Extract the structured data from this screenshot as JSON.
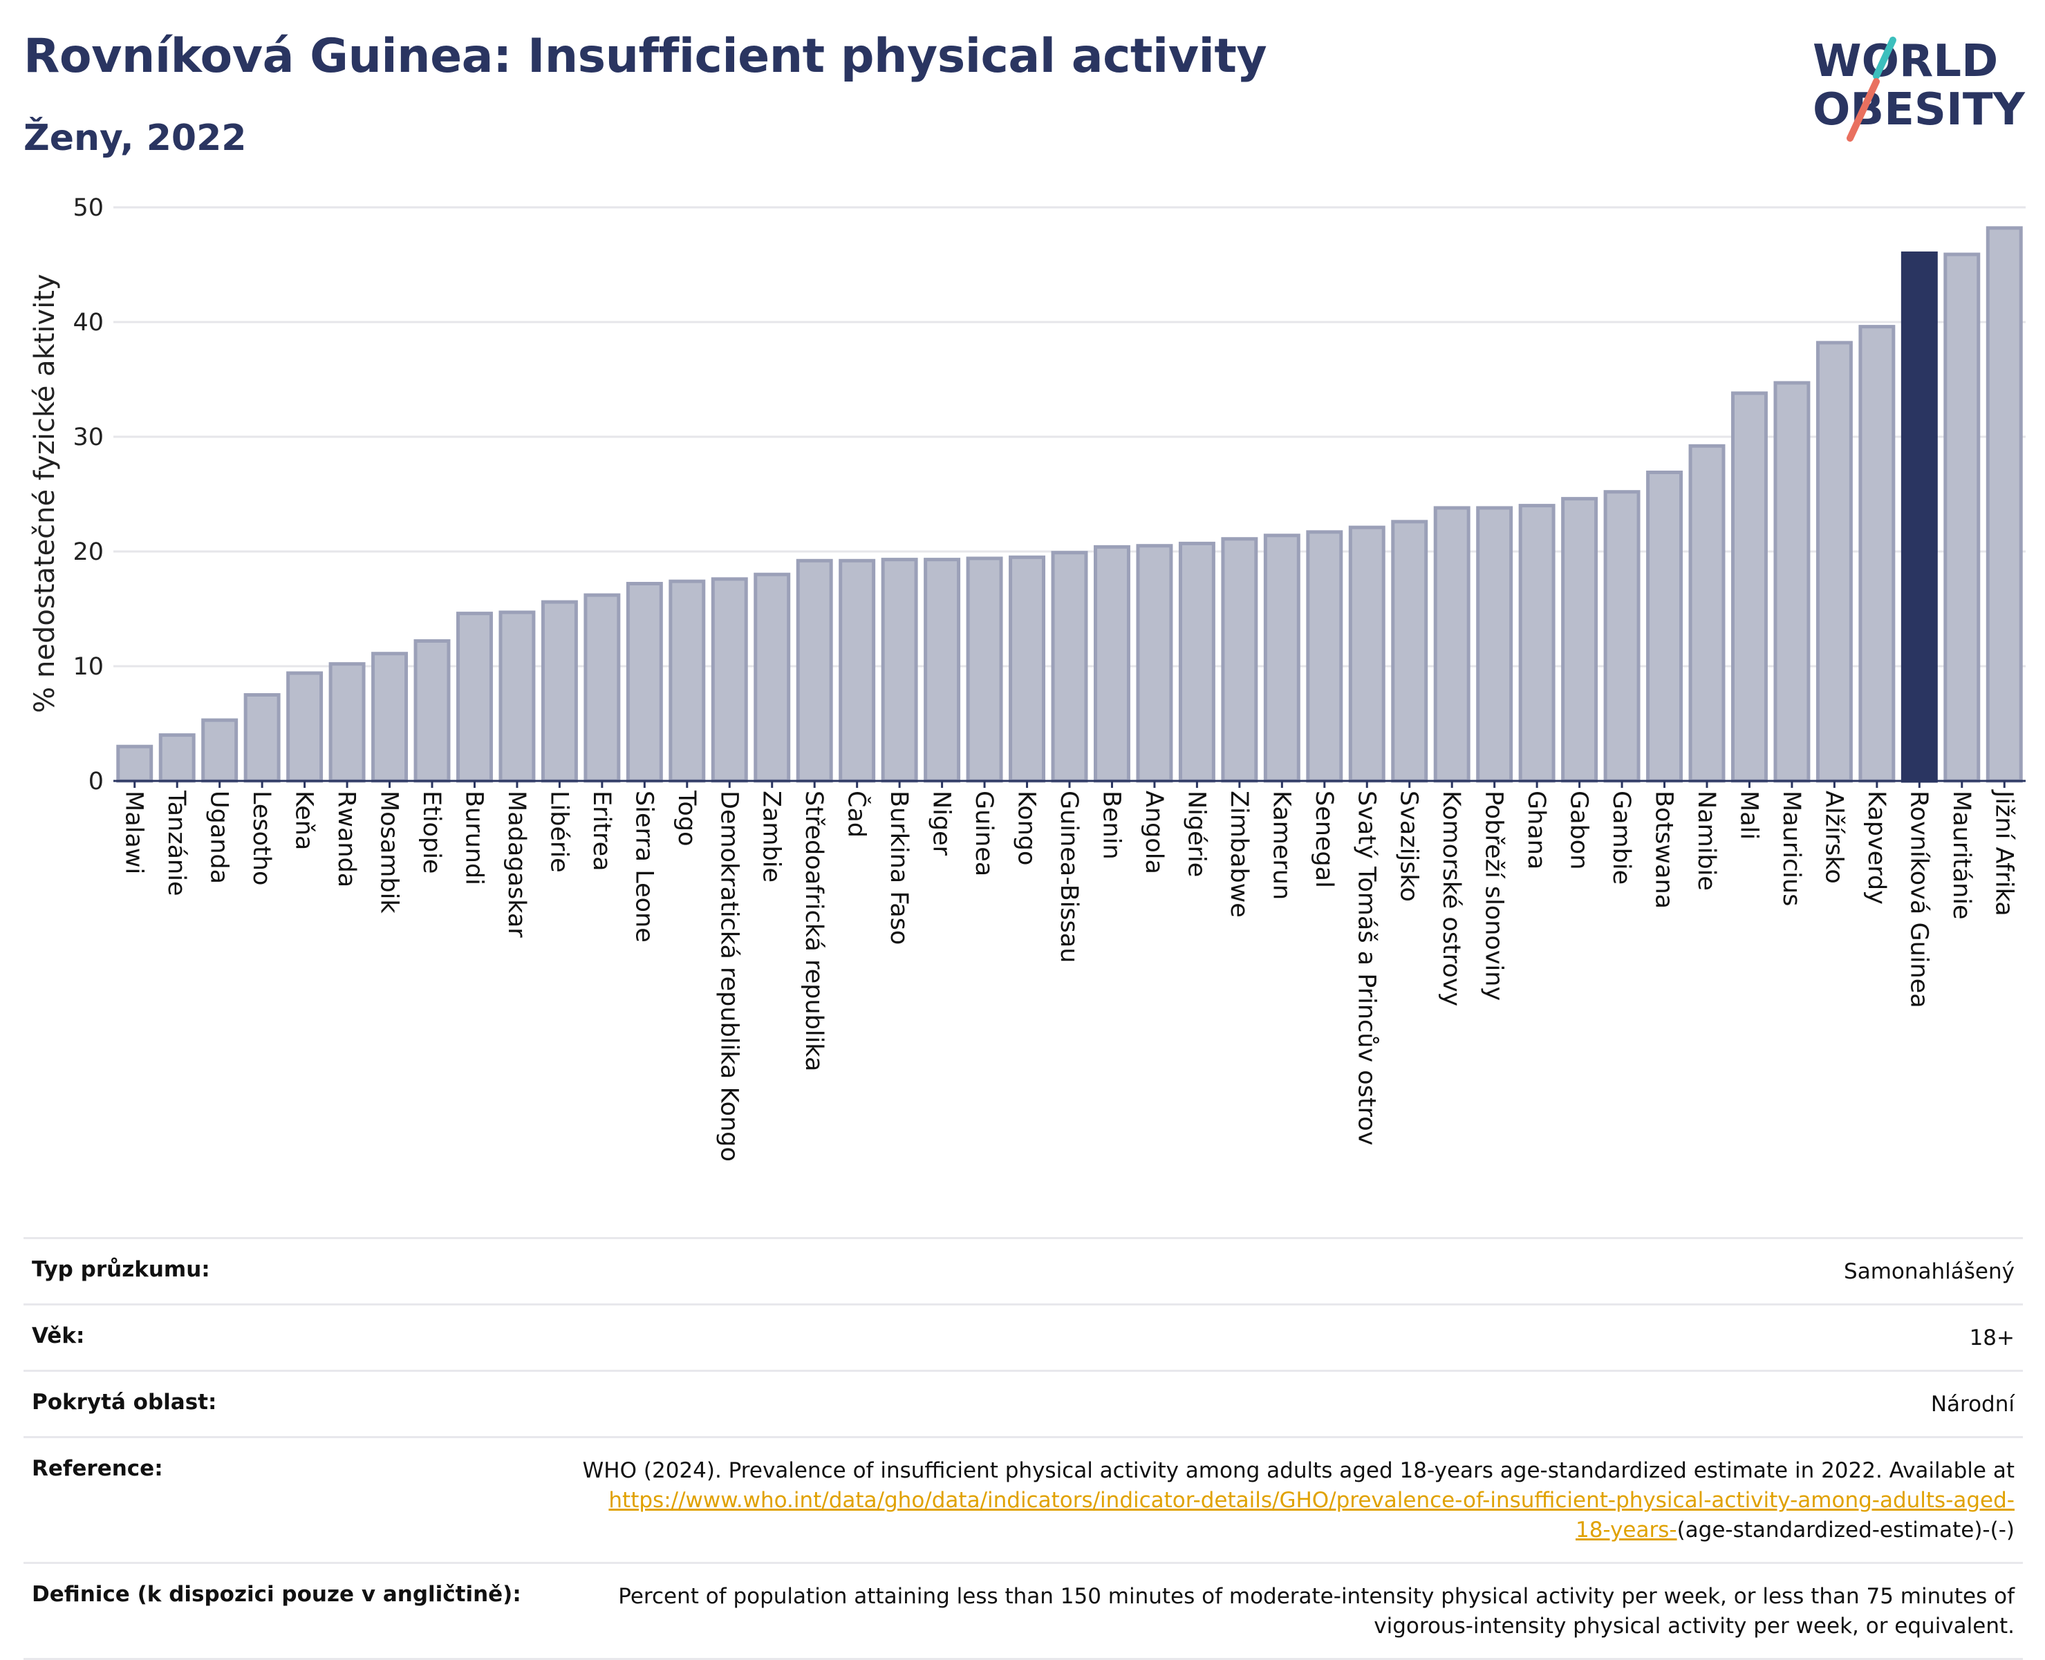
{
  "header": {
    "title": "Rovníková Guinea: Insufficient physical activity",
    "subtitle": "Ženy, 2022"
  },
  "logo": {
    "line1": "WORLD",
    "line2": "OBESITY",
    "accent_teal": "#3cbfbd",
    "accent_coral": "#e9705f"
  },
  "colors": {
    "bar": "#b9bdcc",
    "bar_border": "#9ba0b8",
    "highlight": "#2a3561",
    "grid": "#e6e6ea"
  },
  "chart_data": {
    "type": "bar",
    "ylabel": "% nedostatečné fyzické aktivity",
    "ylim": [
      0,
      50
    ],
    "yticks": [
      0,
      10,
      20,
      30,
      40,
      50
    ],
    "highlight": "Rovníková Guinea",
    "categories": [
      "Malawi",
      "Tanzánie",
      "Uganda",
      "Lesotho",
      "Keňa",
      "Rwanda",
      "Mosambik",
      "Etiopie",
      "Burundi",
      "Madagaskar",
      "Libérie",
      "Eritrea",
      "Sierra Leone",
      "Togo",
      "Demokratická republika Kongo",
      "Zambie",
      "Středoafrická republika",
      "Čad",
      "Burkina Faso",
      "Niger",
      "Guinea",
      "Kongo",
      "Guinea-Bissau",
      "Benin",
      "Angola",
      "Nigérie",
      "Zimbabwe",
      "Kamerun",
      "Senegal",
      "Svatý Tomáš a Princův ostrov",
      "Svazijsko",
      "Komorské ostrovy",
      "Pobřeží slonoviny",
      "Ghana",
      "Gabon",
      "Gambie",
      "Botswana",
      "Namibie",
      "Mali",
      "Mauricius",
      "Alžírsko",
      "Kapverdy",
      "Rovníková Guinea",
      "Mauritánie",
      "Jižní Afrika"
    ],
    "values": [
      3.0,
      4.0,
      5.3,
      7.5,
      9.4,
      10.2,
      11.1,
      12.2,
      14.6,
      14.7,
      15.6,
      16.2,
      17.2,
      17.4,
      17.6,
      18.0,
      19.2,
      19.2,
      19.3,
      19.3,
      19.4,
      19.5,
      19.9,
      20.4,
      20.5,
      20.7,
      21.1,
      21.4,
      21.7,
      22.1,
      22.6,
      23.8,
      23.8,
      24.0,
      24.6,
      25.2,
      26.9,
      29.2,
      33.8,
      34.7,
      38.2,
      39.6,
      46.0,
      45.9,
      48.2
    ]
  },
  "info": {
    "survey_type_label": "Typ průzkumu:",
    "survey_type_value": "Samonahlášený",
    "age_label": "Věk:",
    "age_value": "18+",
    "coverage_label": "Pokrytá oblast:",
    "coverage_value": "Národní",
    "reference_label": "Reference:",
    "reference_text": "WHO (2024). Prevalence of insufficient physical activity among adults aged 18-years age-standardized estimate in 2022. Available at",
    "reference_link_line1": "https://www.who.int/data/gho/data/indicators/indicator-details/GHO/prevalence-of-insufficient-physical-activity-among-adults-aged-",
    "reference_link_line2": "18-years-",
    "reference_suffix": "(age-standardized-estimate)-(-)",
    "definition_label": "Definice (k dispozici pouze v angličtině):",
    "definition_text": "Percent of population attaining less than 150 minutes of moderate-intensity physical activity per week, or less than 75 minutes of vigorous-intensity physical activity per week, or equivalent."
  }
}
